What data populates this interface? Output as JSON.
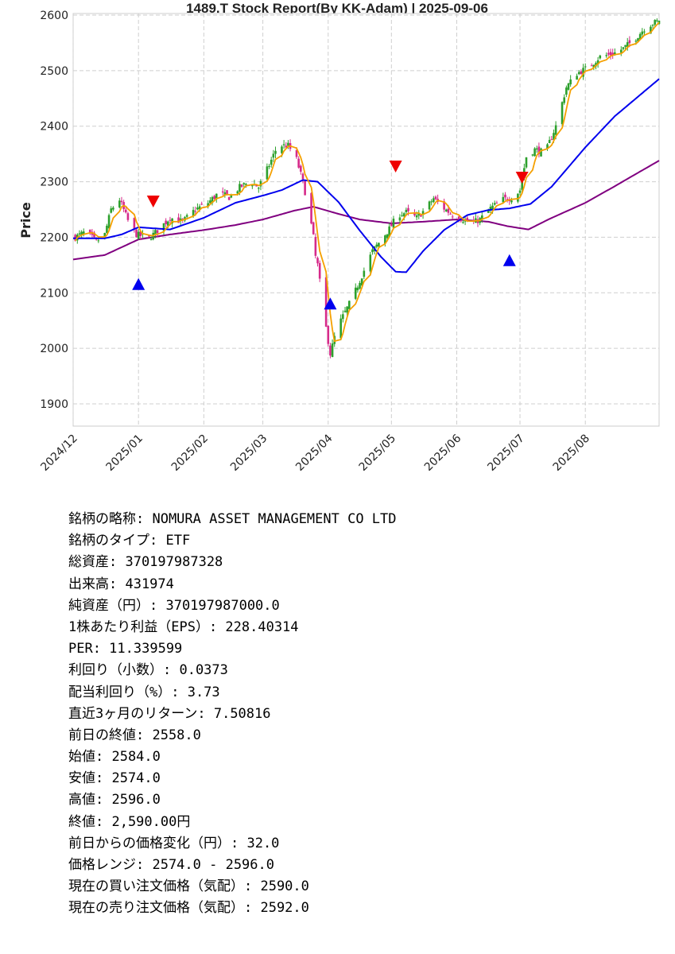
{
  "chart_data": {
    "type": "candlestick",
    "title": "1489.T   Stock Report(By KK-Adam) | 2025-09-06",
    "ylabel": "Price",
    "ylim": [
      1860,
      2605
    ],
    "yticks": [
      1900,
      2000,
      2100,
      2200,
      2300,
      2400,
      2500,
      2600
    ],
    "grid": true,
    "x_tick_labels": [
      "2024/12",
      "2025/01",
      "2025/02",
      "2025/03",
      "2025/04",
      "2025/05",
      "2025/06",
      "2025/07",
      "2025/08"
    ],
    "x_range": [
      "2024-12-01",
      "2025-09-05"
    ],
    "colors": {
      "up": "#2ca02c",
      "down": "#d62a8a",
      "fast_ma": "#f5a000",
      "mid_ma": "#0000ee",
      "slow_ma": "#800080",
      "buy": "#0000ee",
      "sell": "#ee0000"
    },
    "anchors": [
      [
        "2024-12-01",
        2198
      ],
      [
        "2024-12-07",
        2210
      ],
      [
        "2024-12-12",
        2192
      ],
      [
        "2024-12-16",
        2205
      ],
      [
        "2024-12-19",
        2250
      ],
      [
        "2024-12-23",
        2268
      ],
      [
        "2024-12-27",
        2230
      ],
      [
        "2024-12-31",
        2205
      ],
      [
        "2025-01-06",
        2198
      ],
      [
        "2025-01-10",
        2212
      ],
      [
        "2025-01-16",
        2235
      ],
      [
        "2025-01-22",
        2228
      ],
      [
        "2025-01-28",
        2250
      ],
      [
        "2025-02-03",
        2262
      ],
      [
        "2025-02-08",
        2280
      ],
      [
        "2025-02-13",
        2272
      ],
      [
        "2025-02-18",
        2290
      ],
      [
        "2025-02-23",
        2300
      ],
      [
        "2025-02-27",
        2290
      ],
      [
        "2025-03-04",
        2330
      ],
      [
        "2025-03-08",
        2365
      ],
      [
        "2025-03-13",
        2365
      ],
      [
        "2025-03-17",
        2340
      ],
      [
        "2025-03-20",
        2300
      ],
      [
        "2025-03-23",
        2245
      ],
      [
        "2025-03-25",
        2200
      ],
      [
        "2025-03-26",
        2165
      ],
      [
        "2025-03-27",
        2150
      ],
      [
        "2025-03-30",
        2060
      ],
      [
        "2025-04-02",
        1990
      ],
      [
        "2025-04-05",
        2035
      ],
      [
        "2025-04-09",
        2065
      ],
      [
        "2025-04-13",
        2095
      ],
      [
        "2025-04-18",
        2140
      ],
      [
        "2025-04-22",
        2175
      ],
      [
        "2025-04-26",
        2195
      ],
      [
        "2025-04-30",
        2215
      ],
      [
        "2025-05-04",
        2240
      ],
      [
        "2025-05-08",
        2245
      ],
      [
        "2025-05-13",
        2235
      ],
      [
        "2025-05-17",
        2250
      ],
      [
        "2025-05-21",
        2270
      ],
      [
        "2025-05-25",
        2255
      ],
      [
        "2025-05-30",
        2240
      ],
      [
        "2025-06-04",
        2232
      ],
      [
        "2025-06-08",
        2225
      ],
      [
        "2025-06-12",
        2232
      ],
      [
        "2025-06-17",
        2252
      ],
      [
        "2025-06-23",
        2268
      ],
      [
        "2025-06-28",
        2272
      ],
      [
        "2025-07-01",
        2285
      ],
      [
        "2025-07-04",
        2345
      ],
      [
        "2025-07-08",
        2358
      ],
      [
        "2025-07-13",
        2352
      ],
      [
        "2025-07-18",
        2400
      ],
      [
        "2025-07-23",
        2470
      ],
      [
        "2025-07-28",
        2495
      ],
      [
        "2025-08-02",
        2505
      ],
      [
        "2025-08-08",
        2525
      ],
      [
        "2025-08-14",
        2530
      ],
      [
        "2025-08-19",
        2540
      ],
      [
        "2025-08-24",
        2555
      ],
      [
        "2025-08-30",
        2580
      ],
      [
        "2025-09-05",
        2590
      ]
    ],
    "slow_ma": [
      [
        "2024-12-01",
        2160
      ],
      [
        "2024-12-16",
        2168
      ],
      [
        "2025-01-01",
        2196
      ],
      [
        "2025-01-16",
        2205
      ],
      [
        "2025-02-01",
        2213
      ],
      [
        "2025-02-16",
        2222
      ],
      [
        "2025-03-01",
        2232
      ],
      [
        "2025-03-16",
        2248
      ],
      [
        "2025-03-25",
        2255
      ],
      [
        "2025-04-05",
        2243
      ],
      [
        "2025-04-16",
        2232
      ],
      [
        "2025-05-01",
        2225
      ],
      [
        "2025-05-16",
        2228
      ],
      [
        "2025-06-01",
        2232
      ],
      [
        "2025-06-16",
        2228
      ],
      [
        "2025-06-25",
        2220
      ],
      [
        "2025-07-05",
        2214
      ],
      [
        "2025-07-15",
        2233
      ],
      [
        "2025-08-01",
        2262
      ],
      [
        "2025-08-15",
        2292
      ],
      [
        "2025-09-05",
        2338
      ]
    ],
    "mid_ma": [
      [
        "2024-12-01",
        2198
      ],
      [
        "2024-12-16",
        2198
      ],
      [
        "2024-12-24",
        2205
      ],
      [
        "2025-01-01",
        2218
      ],
      [
        "2025-01-16",
        2214
      ],
      [
        "2025-02-01",
        2235
      ],
      [
        "2025-02-16",
        2262
      ],
      [
        "2025-03-01",
        2275
      ],
      [
        "2025-03-10",
        2285
      ],
      [
        "2025-03-20",
        2303
      ],
      [
        "2025-03-27",
        2300
      ],
      [
        "2025-04-06",
        2263
      ],
      [
        "2025-04-16",
        2212
      ],
      [
        "2025-04-26",
        2165
      ],
      [
        "2025-05-03",
        2138
      ],
      [
        "2025-05-08",
        2137
      ],
      [
        "2025-05-16",
        2175
      ],
      [
        "2025-05-26",
        2213
      ],
      [
        "2025-06-06",
        2240
      ],
      [
        "2025-06-16",
        2249
      ],
      [
        "2025-06-26",
        2252
      ],
      [
        "2025-07-06",
        2260
      ],
      [
        "2025-07-16",
        2291
      ],
      [
        "2025-08-01",
        2362
      ],
      [
        "2025-08-15",
        2418
      ],
      [
        "2025-09-05",
        2485
      ]
    ],
    "signals": [
      {
        "type": "buy",
        "date": "2025-01-01",
        "value": 2115
      },
      {
        "type": "sell",
        "date": "2025-01-08",
        "value": 2265
      },
      {
        "type": "buy",
        "date": "2025-04-02",
        "value": 2080
      },
      {
        "type": "sell",
        "date": "2025-05-03",
        "value": 2328
      },
      {
        "type": "buy",
        "date": "2025-06-26",
        "value": 2158
      },
      {
        "type": "sell",
        "date": "2025-07-02",
        "value": 2308
      }
    ]
  },
  "info": [
    "銘柄の略称: NOMURA ASSET MANAGEMENT CO LTD",
    "銘柄のタイプ: ETF",
    "総資産: 370197987328",
    "出来高: 431974",
    "純資産（円）: 370197987000.0",
    "1株あたり利益（EPS）: 228.40314",
    "PER: 11.339599",
    "利回り（小数）: 0.0373",
    "配当利回り（%）: 3.73",
    "直近3ヶ月のリターン: 7.50816",
    "前日の終値: 2558.0",
    "始値: 2584.0",
    "安値: 2574.0",
    "高値: 2596.0",
    "終値: 2,590.00円",
    "前日からの価格変化（円）: 32.0",
    "価格レンジ: 2574.0 - 2596.0",
    "現在の買い注文価格（気配）: 2590.0",
    "現在の売り注文価格（気配）: 2592.0"
  ]
}
